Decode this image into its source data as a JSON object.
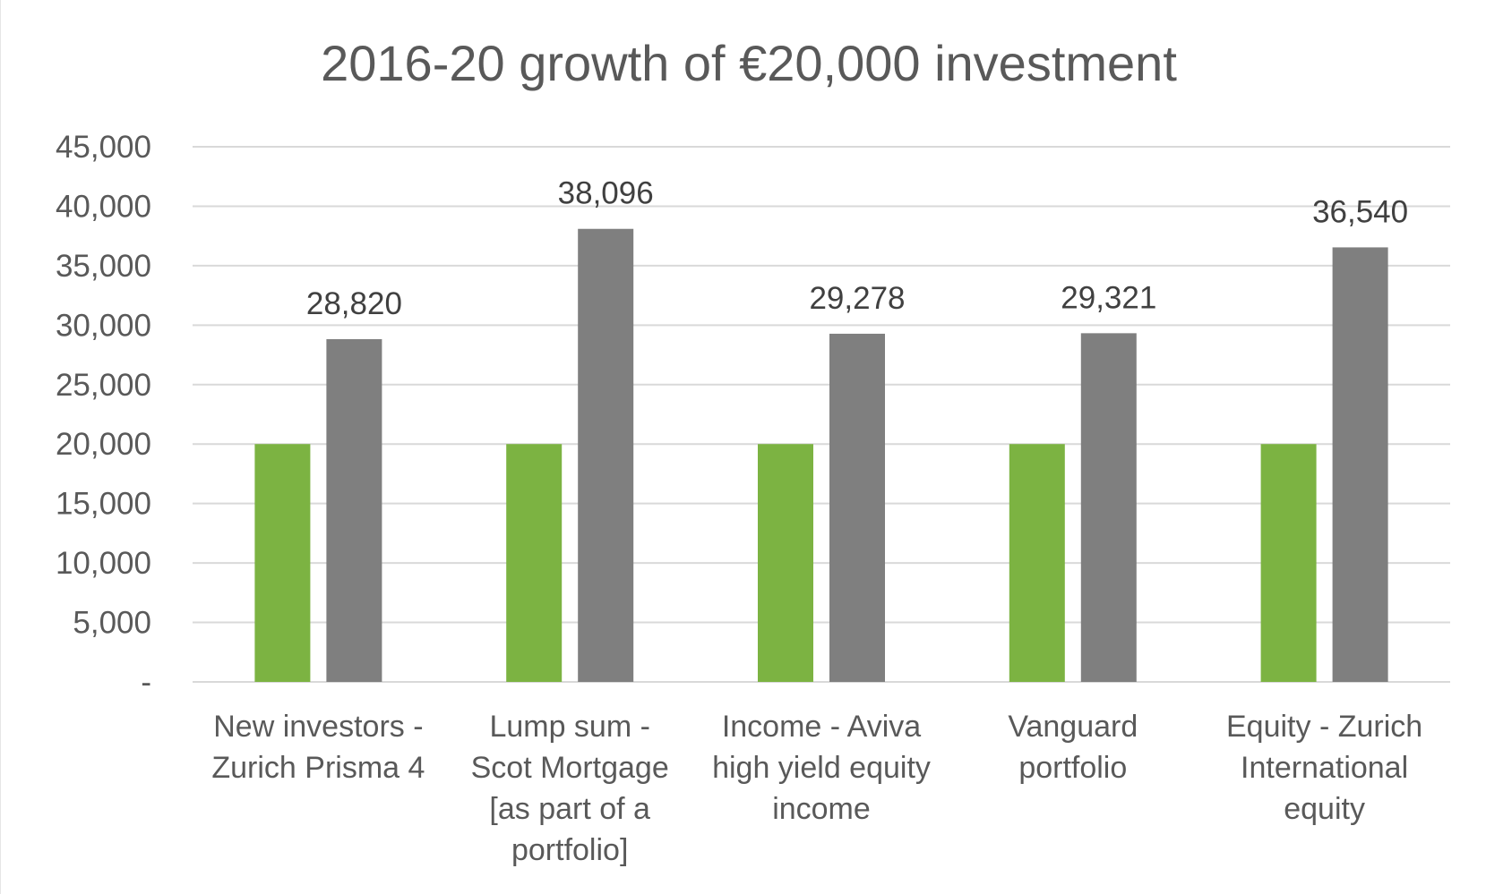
{
  "chart_data": {
    "type": "bar",
    "title": "2016-20 growth of €20,000 investment",
    "categories": [
      [
        "New investors -",
        "Zurich Prisma 4"
      ],
      [
        "Lump sum -",
        "Scot Mortgage",
        "[as part of a",
        "portfolio]"
      ],
      [
        "Income - Aviva",
        "high yield equity",
        "income"
      ],
      [
        "Vanguard",
        "portfolio"
      ],
      [
        "Equity - Zurich",
        "International",
        "equity"
      ]
    ],
    "series": [
      {
        "values": [
          20000,
          20000,
          20000,
          20000,
          20000
        ],
        "color": "#7cb342",
        "data_labels": false
      },
      {
        "values": [
          28820,
          38096,
          29278,
          29321,
          36540
        ],
        "color": "#7f7f7f",
        "data_labels": true
      }
    ],
    "data_labels": [
      "28,820",
      "38,096",
      "29,278",
      "29,321",
      "36,540"
    ],
    "yticks": [
      0,
      5000,
      10000,
      15000,
      20000,
      25000,
      30000,
      35000,
      40000,
      45000
    ],
    "ytick_labels": [
      "-",
      "5,000",
      "10,000",
      "15,000",
      "20,000",
      "25,000",
      "30,000",
      "35,000",
      "40,000",
      "45,000"
    ],
    "ylim": [
      0,
      45000
    ],
    "grid": true,
    "legend": "none",
    "xlabel": "",
    "ylabel": ""
  }
}
